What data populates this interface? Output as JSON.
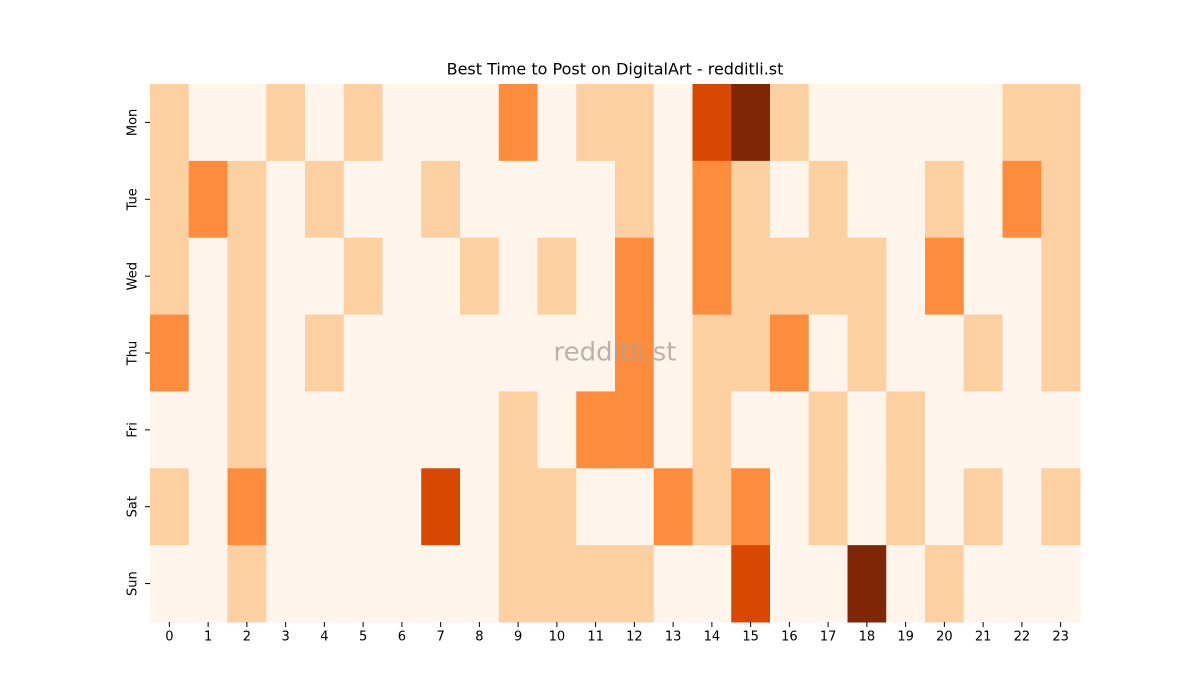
{
  "chart_data": {
    "type": "heatmap",
    "title": "Best Time to Post on DigitalArt - redditli.st",
    "watermark": "redditli.st",
    "categories": [
      0,
      1,
      2,
      3,
      4,
      5,
      6,
      7,
      8,
      9,
      10,
      11,
      12,
      13,
      14,
      15,
      16,
      17,
      18,
      19,
      20,
      21,
      22,
      23
    ],
    "rows": [
      "Mon",
      "Tue",
      "Wed",
      "Thu",
      "Fri",
      "Sat",
      "Sun"
    ],
    "colors": [
      "#fff5eb",
      "#fdd0a2",
      "#fd8d3c",
      "#d94801",
      "#7f2704"
    ],
    "values": [
      [
        1,
        0,
        0,
        1,
        0,
        1,
        0,
        0,
        0,
        2,
        0,
        1,
        1,
        0,
        3,
        4,
        1,
        0,
        0,
        0,
        0,
        0,
        1,
        1
      ],
      [
        1,
        2,
        1,
        0,
        1,
        0,
        0,
        1,
        0,
        0,
        0,
        0,
        1,
        0,
        2,
        1,
        0,
        1,
        0,
        0,
        1,
        0,
        2,
        1
      ],
      [
        1,
        0,
        1,
        0,
        0,
        1,
        0,
        0,
        1,
        0,
        1,
        0,
        2,
        0,
        2,
        1,
        1,
        1,
        1,
        0,
        2,
        0,
        0,
        1
      ],
      [
        2,
        0,
        1,
        0,
        1,
        0,
        0,
        0,
        0,
        0,
        0,
        0,
        2,
        0,
        1,
        1,
        2,
        0,
        1,
        0,
        0,
        1,
        0,
        1
      ],
      [
        0,
        0,
        1,
        0,
        0,
        0,
        0,
        0,
        0,
        1,
        0,
        2,
        2,
        0,
        1,
        0,
        0,
        1,
        0,
        1,
        0,
        0,
        0,
        0
      ],
      [
        1,
        0,
        2,
        0,
        0,
        0,
        0,
        3,
        0,
        1,
        1,
        0,
        0,
        2,
        1,
        2,
        0,
        1,
        0,
        1,
        0,
        1,
        0,
        1
      ],
      [
        0,
        0,
        1,
        0,
        0,
        0,
        0,
        0,
        0,
        1,
        1,
        1,
        1,
        0,
        0,
        3,
        0,
        0,
        4,
        0,
        1,
        0,
        0,
        0
      ]
    ]
  }
}
